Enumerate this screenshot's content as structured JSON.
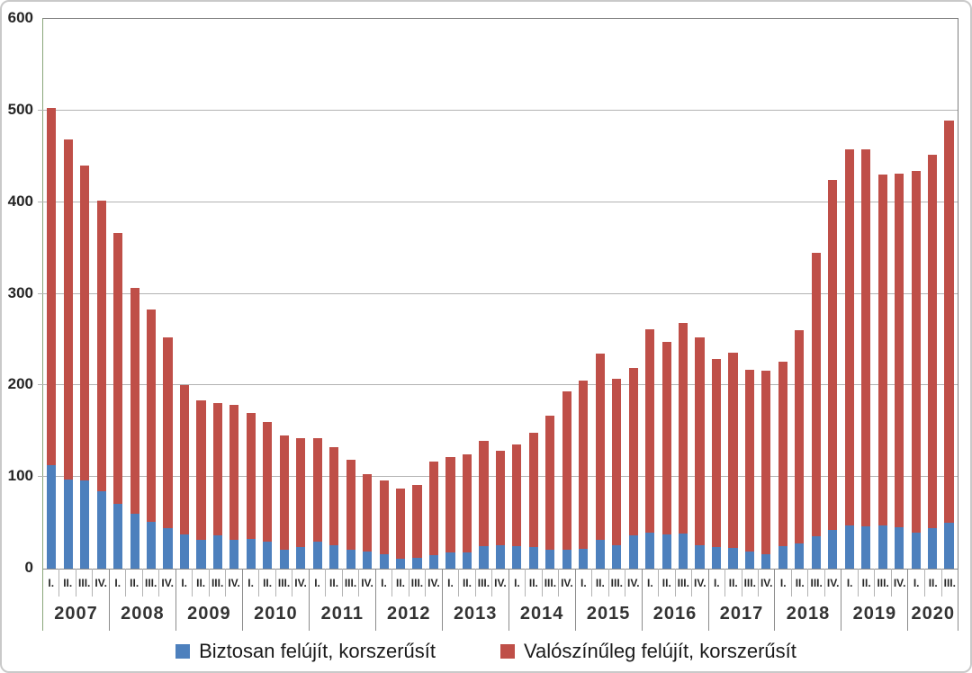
{
  "chart_data": {
    "type": "bar",
    "stacked": true,
    "title": "",
    "xlabel": "",
    "ylabel": "",
    "ylim": [
      0,
      600
    ],
    "yticks": [
      0,
      100,
      200,
      300,
      400,
      500,
      600
    ],
    "grid": "horizontal",
    "legend_position": "bottom",
    "quarter_labels": [
      "I.",
      "II.",
      "III.",
      "IV."
    ],
    "years": [
      {
        "label": "2007",
        "quarters": 4
      },
      {
        "label": "2008",
        "quarters": 4
      },
      {
        "label": "2009",
        "quarters": 4
      },
      {
        "label": "2010",
        "quarters": 4
      },
      {
        "label": "2011",
        "quarters": 4
      },
      {
        "label": "2012",
        "quarters": 4
      },
      {
        "label": "2013",
        "quarters": 4
      },
      {
        "label": "2014",
        "quarters": 4
      },
      {
        "label": "2015",
        "quarters": 4
      },
      {
        "label": "2016",
        "quarters": 4
      },
      {
        "label": "2017",
        "quarters": 4
      },
      {
        "label": "2018",
        "quarters": 4
      },
      {
        "label": "2019",
        "quarters": 4
      },
      {
        "label": "2020",
        "quarters": 3
      }
    ],
    "series": [
      {
        "name": "Biztosan felújít, korszerűsít",
        "color": "#4d80bd",
        "values": [
          113,
          97,
          96,
          84,
          71,
          60,
          51,
          44,
          37,
          31,
          36,
          31,
          32,
          29,
          21,
          24,
          29,
          26,
          21,
          19,
          16,
          11,
          12,
          15,
          18,
          18,
          25,
          26,
          25,
          24,
          21,
          21,
          22,
          31,
          26,
          36,
          39,
          37,
          38,
          26,
          24,
          23,
          19,
          16,
          25,
          28,
          35,
          42,
          47,
          46,
          47,
          45,
          39,
          44,
          50
        ]
      },
      {
        "name": "Valószínűleg felújít, korszerűsít",
        "color": "#bf4f48",
        "values": [
          390,
          371,
          344,
          318,
          295,
          246,
          232,
          208,
          163,
          153,
          145,
          148,
          138,
          131,
          124,
          118,
          113,
          107,
          98,
          84,
          80,
          76,
          79,
          102,
          104,
          107,
          114,
          103,
          111,
          124,
          146,
          172,
          183,
          204,
          181,
          183,
          222,
          210,
          230,
          226,
          205,
          213,
          198,
          200,
          201,
          232,
          310,
          382,
          411,
          412,
          383,
          386,
          395,
          408,
          439
        ]
      }
    ],
    "totals_note": "bar total = blue + red; e.g. 2007 I. = 503, 2012 II. = 87, 2020 III. = 489"
  }
}
